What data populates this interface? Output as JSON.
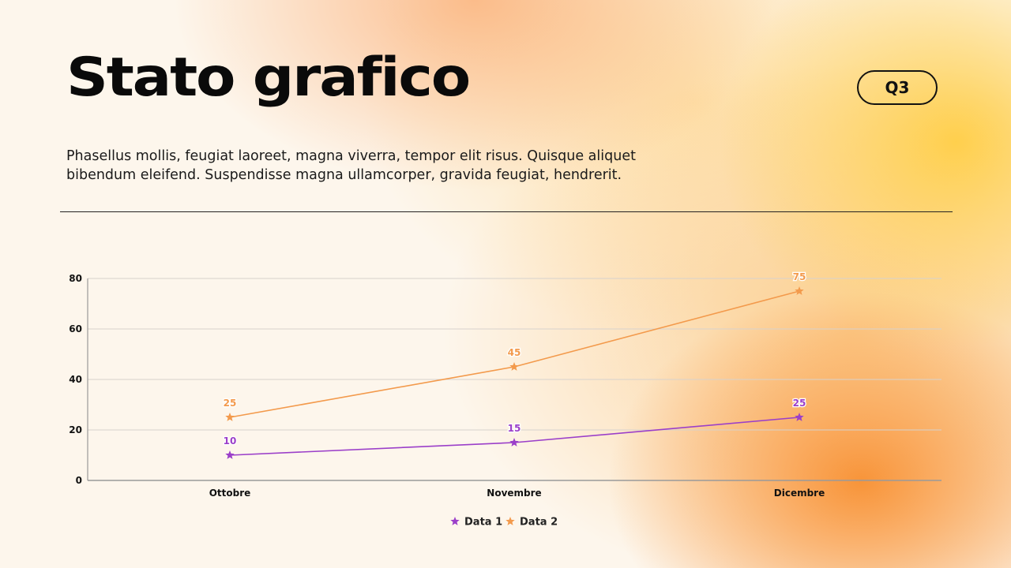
{
  "header": {
    "title": "Stato grafico",
    "badge": "Q3",
    "description": "Phasellus mollis, feugiat laoreet, magna viverra, tempor elit risus. Quisque aliquet bibendum eleifend. Suspendisse magna ullamcorper, gravida feugiat, hendrerit."
  },
  "colors": {
    "series1": "#9b3fc9",
    "series2": "#f39a4c",
    "grid": "#d7d2cd",
    "axis": "#9a9a9a"
  },
  "chart_data": {
    "type": "line",
    "categories": [
      "Ottobre",
      "Novembre",
      "Dicembre"
    ],
    "series": [
      {
        "name": "Data 1",
        "values": [
          10,
          15,
          25
        ],
        "marker": "star"
      },
      {
        "name": "Data 2",
        "values": [
          25,
          45,
          75
        ],
        "marker": "star"
      }
    ],
    "y_ticks": [
      0,
      20,
      40,
      60,
      80
    ],
    "ylim": [
      0,
      80
    ],
    "grid": true,
    "legend_position": "bottom-center",
    "data_labels": true
  }
}
